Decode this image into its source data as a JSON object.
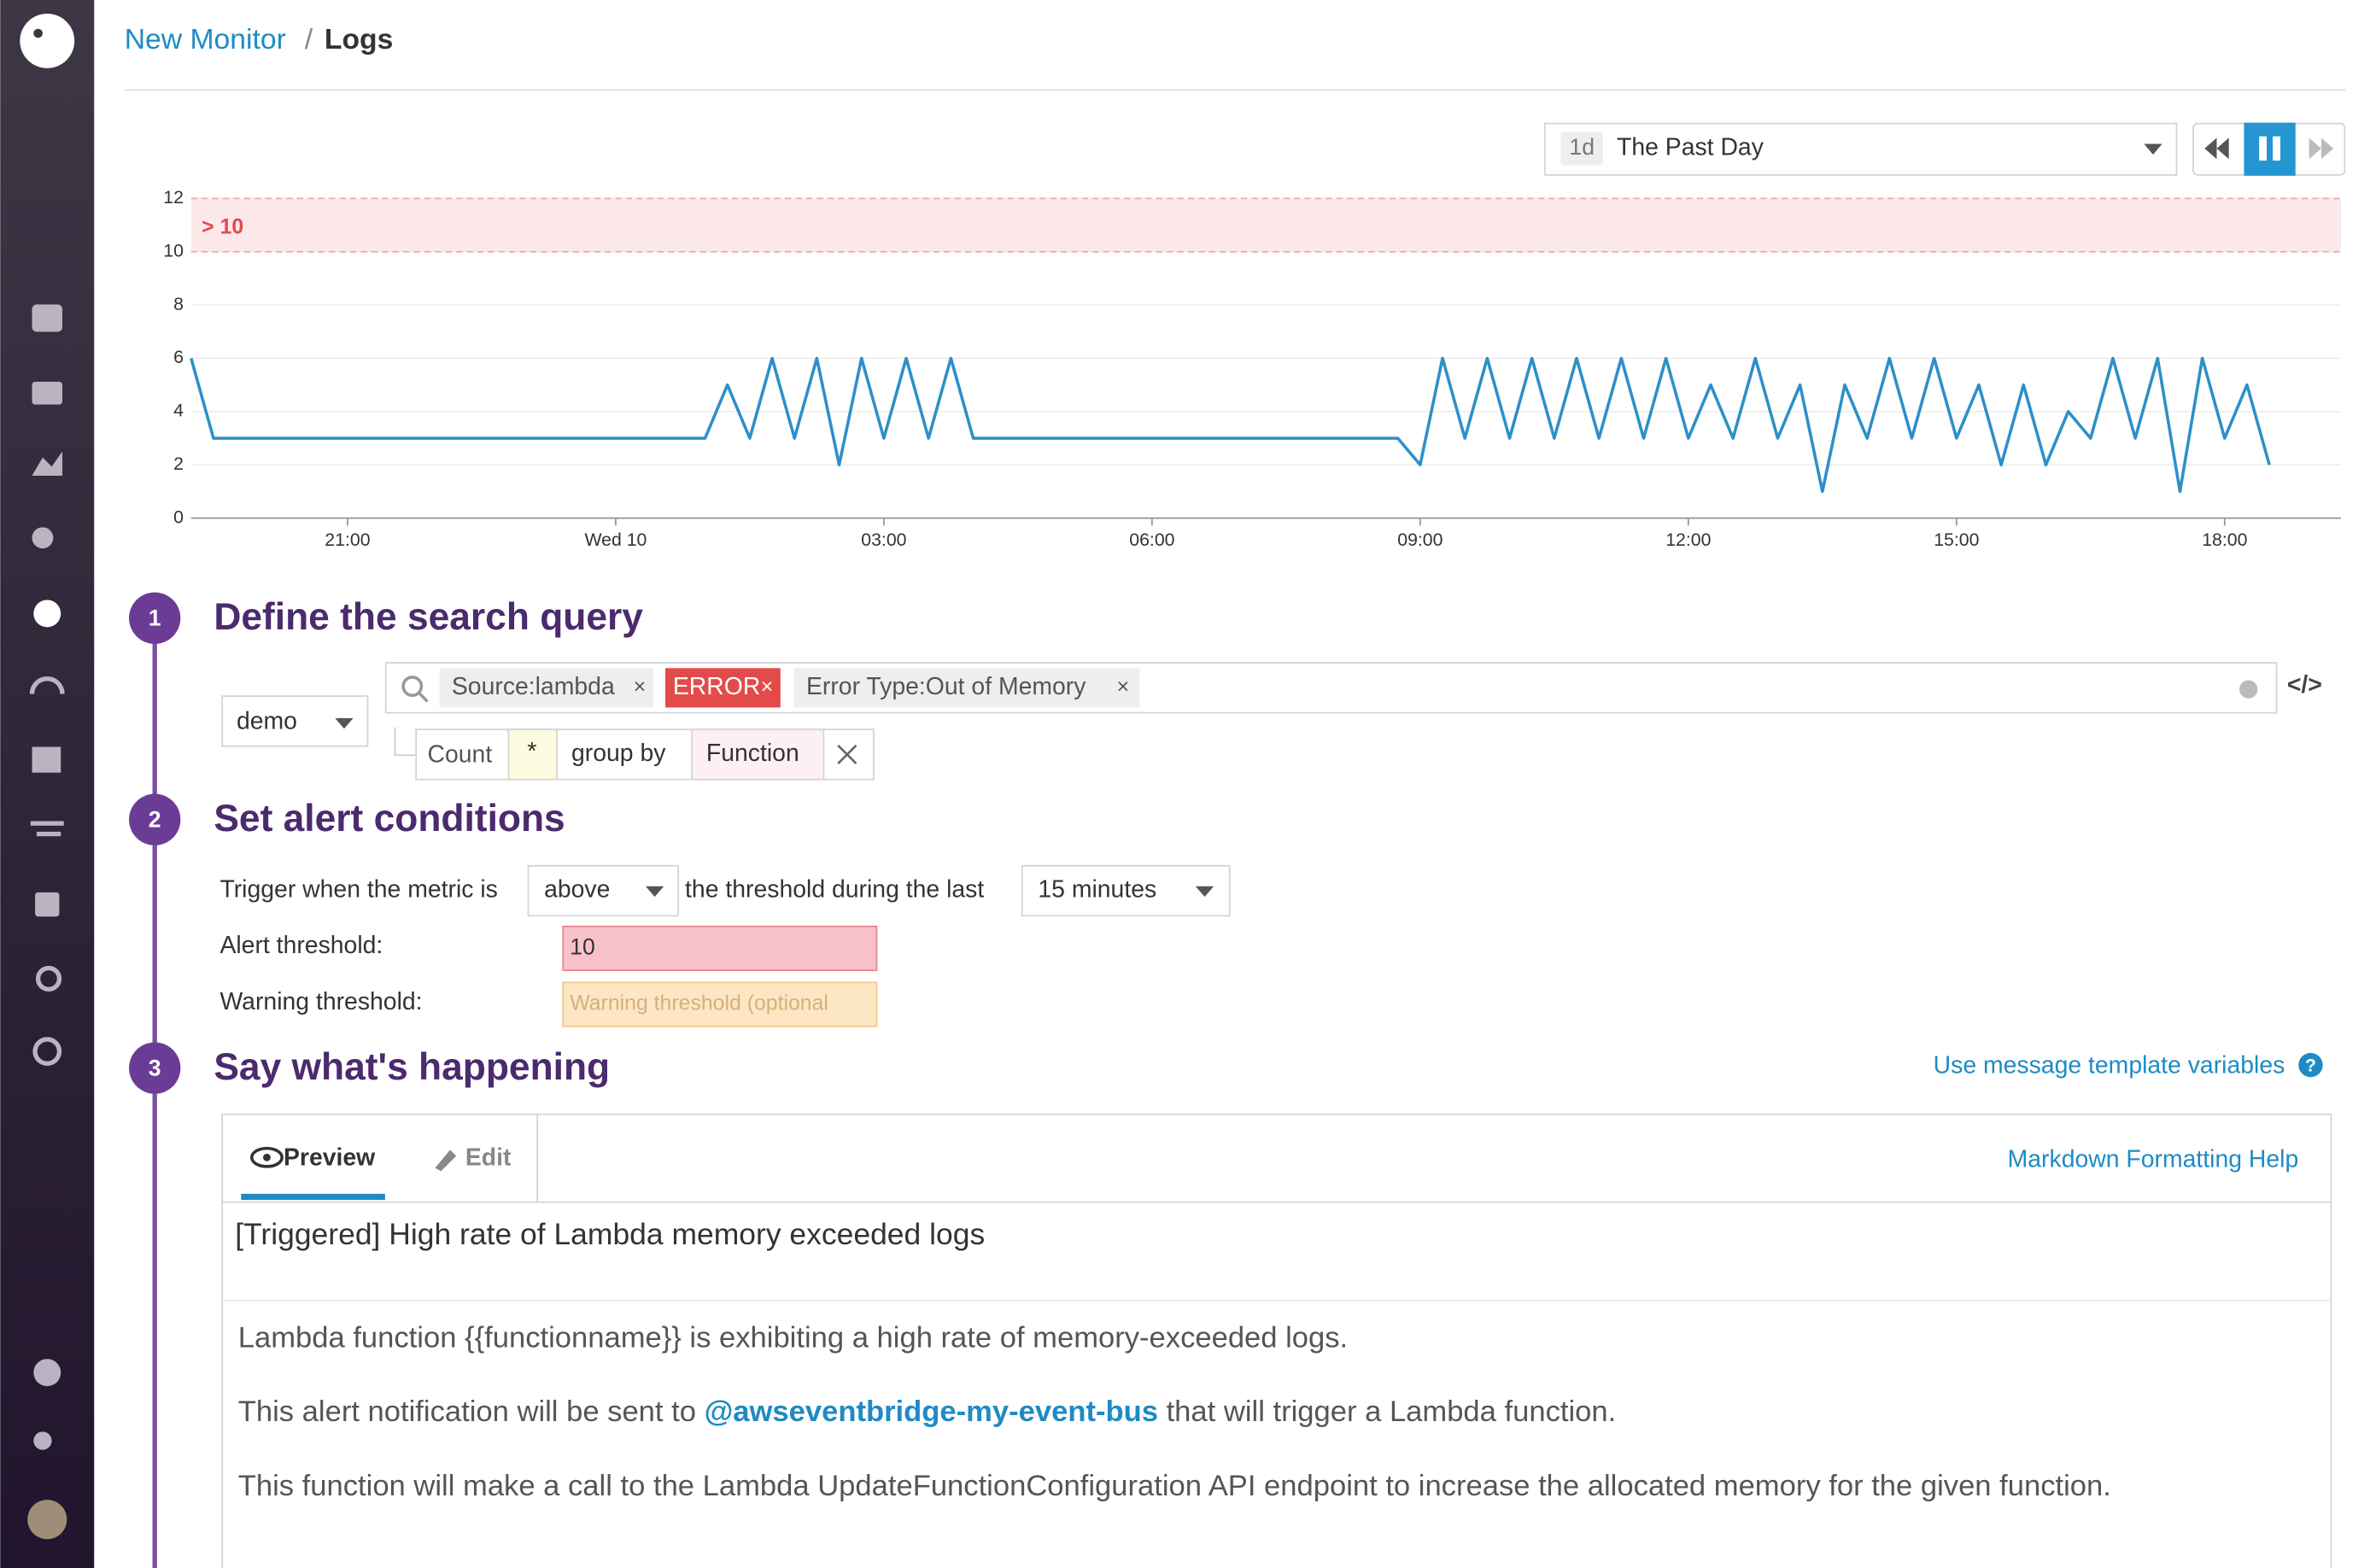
{
  "header": {
    "crumb": "New Monitor",
    "separator": "/",
    "page": "Logs"
  },
  "timeframe": {
    "short": "1d",
    "label": "The Past Day"
  },
  "chart_data": {
    "type": "line",
    "color": "#2d8fc9",
    "categories": [
      null,
      null,
      null,
      null,
      null,
      null,
      null,
      "21:00",
      null,
      null,
      null,
      null,
      null,
      null,
      null,
      null,
      null,
      null,
      null,
      "Wed 10",
      null,
      null,
      null,
      null,
      null,
      null,
      null,
      null,
      null,
      null,
      null,
      "03:00",
      null,
      null,
      null,
      null,
      null,
      null,
      null,
      null,
      null,
      null,
      null,
      "06:00",
      null,
      null,
      null,
      null,
      null,
      null,
      null,
      null,
      null,
      null,
      null,
      "09:00",
      null,
      null,
      null,
      null,
      null,
      null,
      null,
      null,
      null,
      null,
      null,
      "12:00",
      null,
      null,
      null,
      null,
      null,
      null,
      null,
      null,
      null,
      null,
      null,
      "15:00",
      null,
      null,
      null,
      null,
      null,
      null,
      null,
      null,
      null,
      null,
      null,
      "18:00",
      null,
      null
    ],
    "values": [
      6,
      3,
      3,
      3,
      3,
      3,
      3,
      3,
      3,
      3,
      3,
      3,
      3,
      3,
      3,
      3,
      3,
      3,
      3,
      3,
      3,
      3,
      3,
      3,
      5,
      3,
      6,
      3,
      6,
      2,
      6,
      3,
      6,
      3,
      6,
      3,
      3,
      3,
      3,
      3,
      3,
      3,
      3,
      3,
      3,
      3,
      3,
      3,
      3,
      3,
      3,
      3,
      3,
      3,
      3,
      2,
      6,
      3,
      6,
      3,
      6,
      3,
      6,
      3,
      6,
      3,
      6,
      3,
      5,
      3,
      6,
      3,
      5,
      1,
      5,
      3,
      6,
      3,
      6,
      3,
      5,
      2,
      5,
      2,
      4,
      3,
      6,
      3,
      6,
      1,
      6,
      3,
      5,
      2
    ],
    "ylim": [
      0,
      12
    ],
    "yticks": [
      0,
      2,
      4,
      6,
      8,
      10,
      12
    ],
    "grid": true,
    "threshold": 10,
    "threshold_label": "> 10"
  },
  "steps": [
    {
      "number": 1,
      "title": "Define the search query"
    },
    {
      "number": 2,
      "title": "Set alert conditions"
    },
    {
      "number": 3,
      "title": "Say what's happening"
    }
  ],
  "query": {
    "source": "demo",
    "tags": [
      "Source:lambda",
      "ERROR",
      "Error Type:Out of Memory"
    ],
    "aggregation": "Count",
    "measure": "*",
    "group_by_label": "group by",
    "group_by": "Function"
  },
  "alert": {
    "trigger_prefix": "Trigger when the metric is",
    "comparator": "above",
    "trigger_middle": "the threshold during the last",
    "window": "15 minutes",
    "alert_label": "Alert threshold:",
    "alert_value": 10,
    "warning_label": "Warning threshold:",
    "warning_placeholder": "Warning threshold (optional"
  },
  "message": {
    "help_link": "Use message template variables",
    "tabs": [
      "Preview",
      "Edit"
    ],
    "markdown_help": "Markdown Formatting Help",
    "subject": "[Triggered] High rate of Lambda memory exceeded logs",
    "body": {
      "line1": "Lambda function {{functionname}} is exhibiting a high rate of memory-exceeded logs.",
      "line2_before": "This alert notification will be sent to ",
      "line2_mention": "@awseventbridge-my-event-bus",
      "line2_after": " that will trigger a Lambda function.",
      "line3": "This function will make a call to the Lambda UpdateFunctionConfiguration API endpoint to increase the allocated memory for the given function."
    }
  }
}
